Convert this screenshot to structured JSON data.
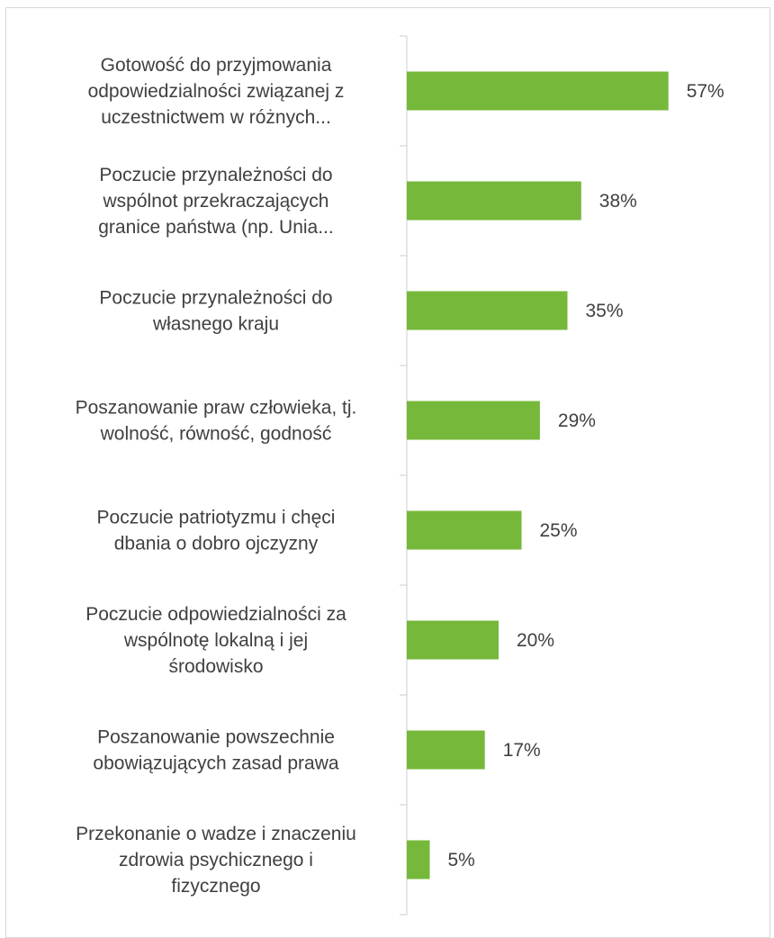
{
  "chart_data": {
    "type": "bar",
    "orientation": "horizontal",
    "categories": [
      [
        "Gotowość do przyjmowania",
        "odpowiedzialności związanej z",
        "uczestnictwem  w różnych..."
      ],
      [
        "Poczucie przynależności do",
        "wspólnot przekraczających",
        "granice państwa (np. Unia..."
      ],
      [
        "Poczucie  przynależności do",
        "własnego kraju"
      ],
      [
        "Poszanowanie praw człowieka, tj.",
        "wolność, równość, godność"
      ],
      [
        "Poczucie patriotyzmu i chęci",
        "dbania  o dobro ojczyzny"
      ],
      [
        "Poczucie  odpowiedzialności za",
        "wspólnotę lokalną i jej",
        "środowisko"
      ],
      [
        "Poszanowanie  powszechnie",
        "obowiązujących  zasad  prawa"
      ],
      [
        "Przekonanie o wadze i znaczeniu",
        "zdrowia psychicznego i",
        "fizycznego"
      ]
    ],
    "values": [
      57,
      38,
      35,
      29,
      25,
      20,
      17,
      5
    ],
    "value_labels": [
      "57%",
      "38%",
      "35%",
      "29%",
      "25%",
      "20%",
      "17%",
      "5%"
    ],
    "unit": "%",
    "xlim": [
      0,
      100
    ],
    "grid": false,
    "legend": "none",
    "bar_color": "#76b83a",
    "axis_color": "#d9d9d9",
    "text_color": "#404040"
  }
}
